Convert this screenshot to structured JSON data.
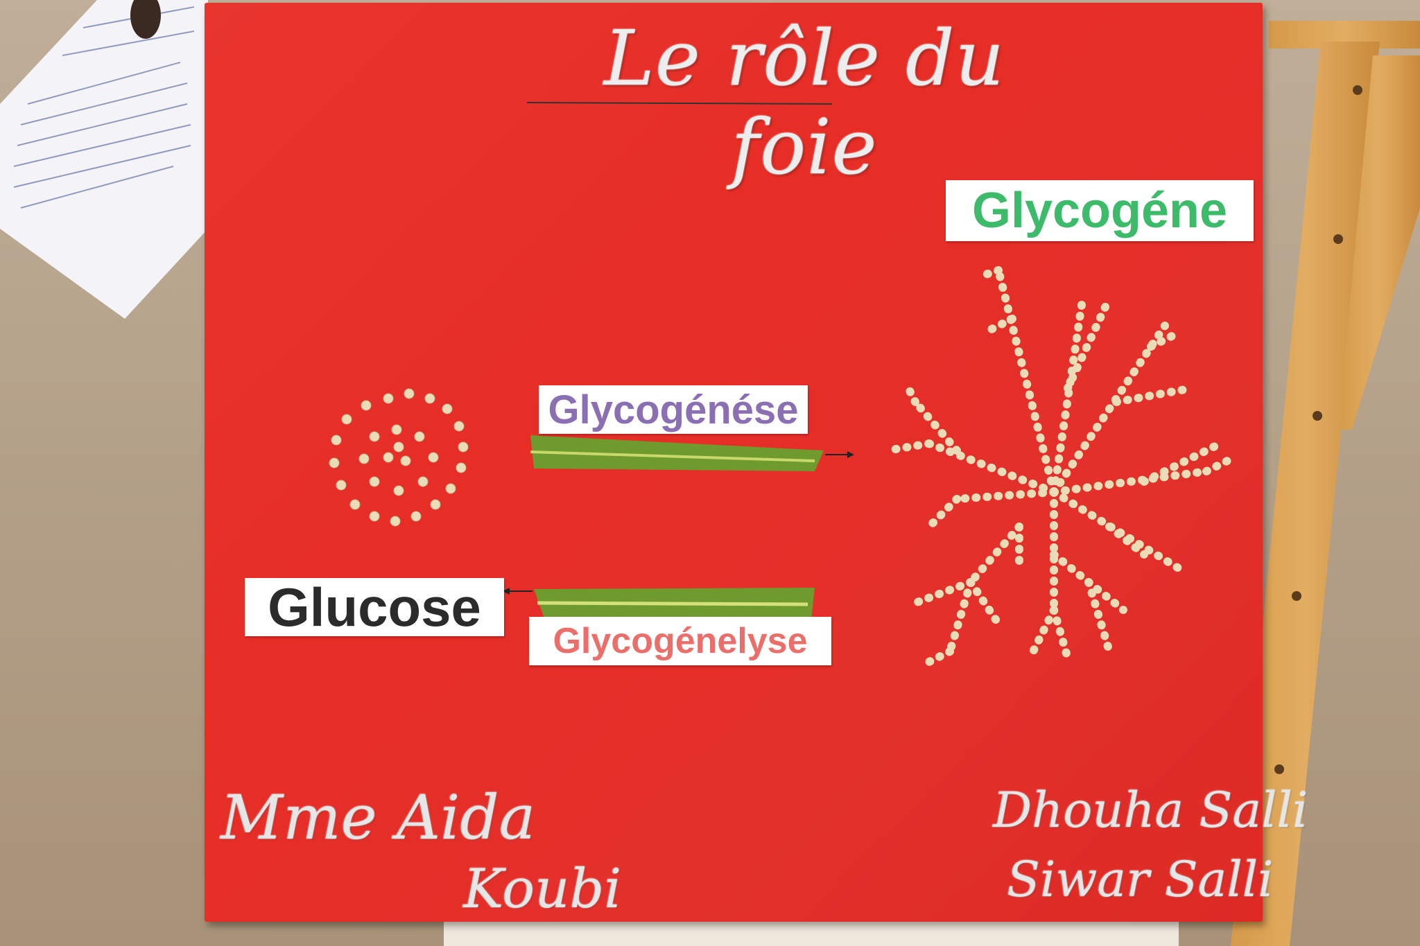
{
  "poster": {
    "title": "Le rôle du foie",
    "labels": {
      "glycogene": "Glycogéne",
      "glycogenese": "Glycogénése",
      "glucose": "Glucose",
      "glycogenelyse": "Glycogénelyse"
    },
    "signatures": {
      "teacher_line1": "Mme Aida",
      "teacher_line2": "Koubi",
      "student1": "Dhouha Salli",
      "student2": "Siwar Salli"
    }
  },
  "colors": {
    "board": "#e5302a",
    "glycogene_text": "#3dba6a",
    "glycogenese_text": "#8b6fb3",
    "glucose_text": "#2b2b2b",
    "glycogenelyse_text": "#ea6f6b",
    "seeds": "#e9dcb6",
    "leaf": "#6f9a2e",
    "glitter": "#e6e6e6"
  }
}
